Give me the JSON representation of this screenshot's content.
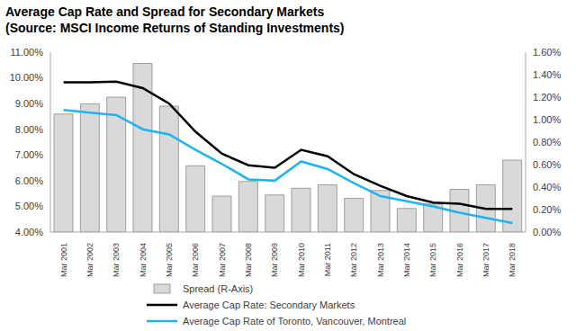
{
  "chart_data": {
    "type": "bar",
    "title": "Average Cap Rate and Spread for Secondary Markets",
    "subtitle": "(Source: MSCI Income Returns of Standing Investments)",
    "categories": [
      "Mar 2001",
      "Mar 2002",
      "Mar 2003",
      "Mar 2004",
      "Mar 2005",
      "Mar 2006",
      "Mar 2007",
      "Mar 2008",
      "Mar 2009",
      "Mar 2010",
      "Mar 2011",
      "Mar 2012",
      "Mar 2013",
      "Mar 2014",
      "Mar 2015",
      "Mar 2016",
      "Mar 2017",
      "Mar 2018"
    ],
    "series": [
      {
        "name": "Spread (R-Axis)",
        "type": "bar",
        "axis": "y2",
        "color": "#d9d9d9",
        "values": [
          1.05,
          1.14,
          1.2,
          1.5,
          1.12,
          0.59,
          0.32,
          0.45,
          0.33,
          0.39,
          0.42,
          0.3,
          0.37,
          0.21,
          0.25,
          0.38,
          0.42,
          0.64
        ]
      },
      {
        "name": "Average Cap Rate: Secondary Markets",
        "type": "line",
        "axis": "y",
        "color": "#000000",
        "values": [
          9.83,
          9.83,
          9.85,
          9.6,
          9.0,
          7.9,
          7.05,
          6.6,
          6.5,
          7.2,
          6.95,
          6.25,
          5.8,
          5.4,
          5.15,
          5.1,
          4.9,
          4.9
        ]
      },
      {
        "name": "Average Cap Rate of Toronto, Vancouver, Montreal",
        "type": "line",
        "axis": "y",
        "color": "#1fb4f0",
        "values": [
          8.75,
          8.65,
          8.55,
          8.0,
          7.8,
          7.2,
          6.65,
          6.05,
          6.0,
          6.75,
          6.45,
          5.9,
          5.4,
          5.2,
          5.0,
          4.75,
          4.55,
          4.35
        ]
      }
    ],
    "ylim": [
      4,
      11
    ],
    "yticks": [
      {
        "value": 4,
        "label": "4.00%"
      },
      {
        "value": 5,
        "label": "5.00%"
      },
      {
        "value": 6,
        "label": "6.00%"
      },
      {
        "value": 7,
        "label": "7.00%"
      },
      {
        "value": 8,
        "label": "8.00%"
      },
      {
        "value": 9,
        "label": "9.00%"
      },
      {
        "value": 10,
        "label": "10.00%"
      },
      {
        "value": 11,
        "label": "11.00%"
      }
    ],
    "y2lim": [
      0,
      1.6
    ],
    "y2ticks": [
      {
        "value": 0,
        "label": "0.00%"
      },
      {
        "value": 0.2,
        "label": "0.20%"
      },
      {
        "value": 0.4,
        "label": "0.40%"
      },
      {
        "value": 0.6,
        "label": "0.60%"
      },
      {
        "value": 0.8,
        "label": "0.80%"
      },
      {
        "value": 1.0,
        "label": "1.00%"
      },
      {
        "value": 1.2,
        "label": "1.20%"
      },
      {
        "value": 1.4,
        "label": "1.40%"
      },
      {
        "value": 1.6,
        "label": "1.60%"
      }
    ],
    "grid": false,
    "legend": "bottom"
  }
}
